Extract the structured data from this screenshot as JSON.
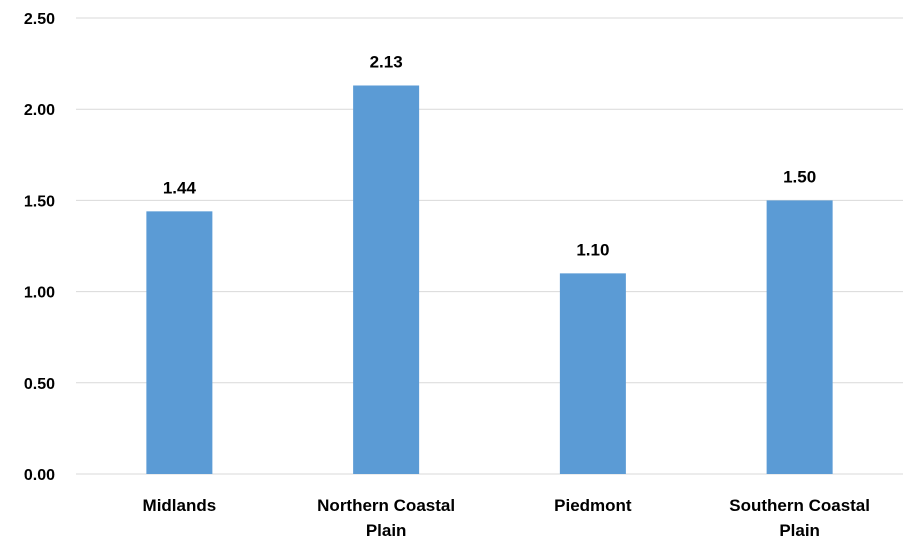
{
  "chart_data": {
    "type": "bar",
    "categories": [
      [
        "Midlands"
      ],
      [
        "Northern Coastal",
        "Plain"
      ],
      [
        "Piedmont"
      ],
      [
        "Southern Coastal",
        "Plain"
      ]
    ],
    "values": [
      1.44,
      2.13,
      1.1,
      1.5
    ],
    "data_labels": [
      "1.44",
      "2.13",
      "1.10",
      "1.50"
    ],
    "y_ticks": [
      "0.00",
      "0.50",
      "1.00",
      "1.50",
      "2.00",
      "2.50"
    ],
    "ylim": [
      0,
      2.5
    ],
    "grid": true,
    "colors": {
      "bar": "#5B9BD5",
      "grid": "#D9D9D9",
      "text": "#000000"
    }
  }
}
